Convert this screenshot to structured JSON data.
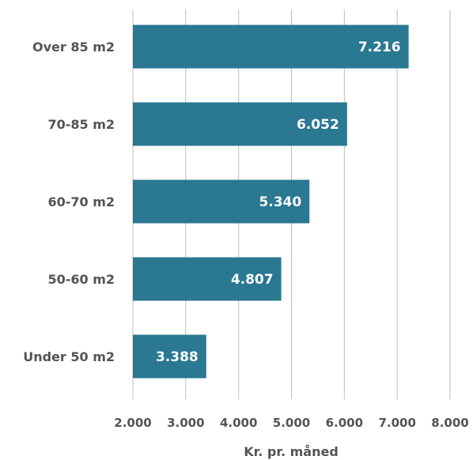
{
  "chart_data": {
    "type": "bar",
    "orientation": "horizontal",
    "categories": [
      "Over 85 m2",
      "70-85 m2",
      "60-70 m2",
      "50-60 m2",
      "Under 50 m2"
    ],
    "values": [
      7216,
      6052,
      5340,
      4807,
      3388
    ],
    "value_labels": [
      "7.216",
      "6.052",
      "5.340",
      "4.807",
      "3.388"
    ],
    "xlabel": "Kr. pr. måned",
    "xlim": [
      2000,
      8000
    ],
    "xticks": [
      2000,
      3000,
      4000,
      5000,
      6000,
      7000,
      8000
    ],
    "xtick_labels": [
      "2.000",
      "3.000",
      "4.000",
      "5.000",
      "6.000",
      "7.000",
      "8.000"
    ],
    "grid": "vertical",
    "bar_color": "#2a7892"
  }
}
